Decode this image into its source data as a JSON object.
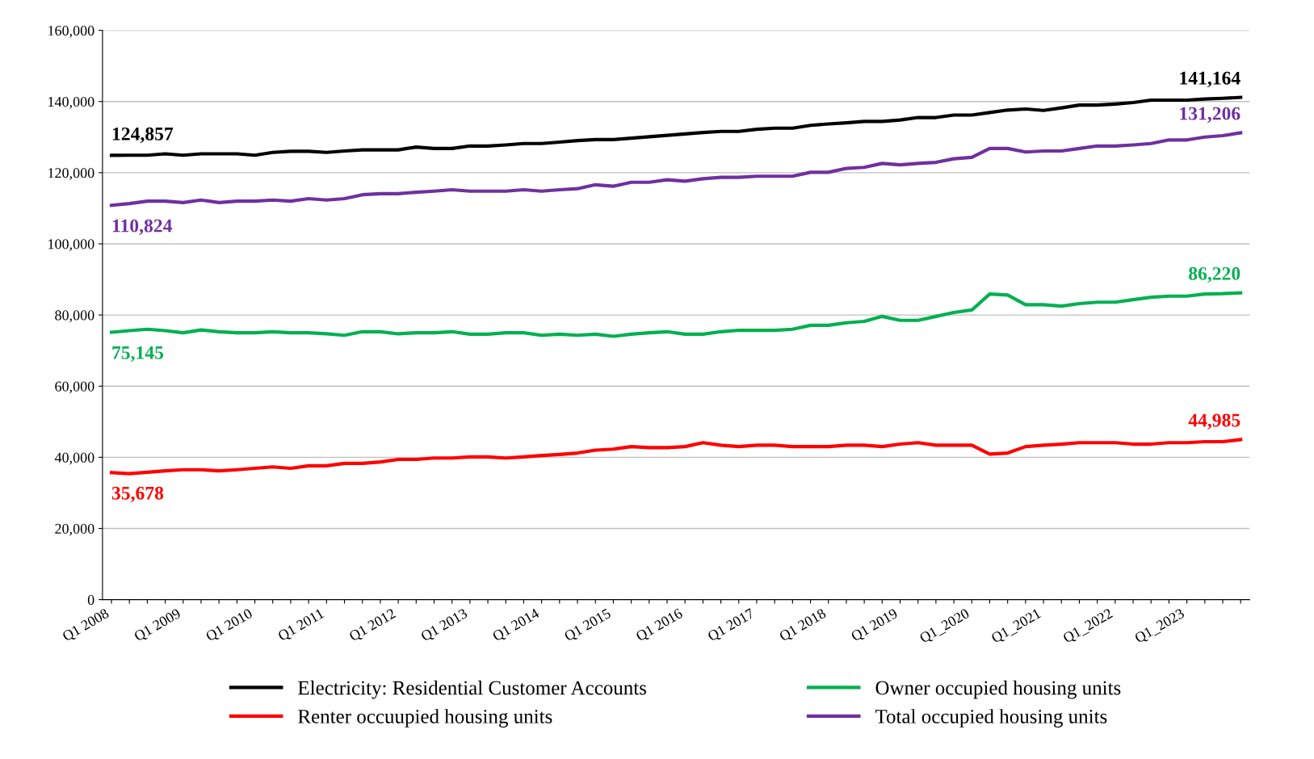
{
  "chart_data": {
    "type": "line",
    "categories": [
      "Q1 2008",
      null,
      null,
      null,
      "Q1 2009",
      null,
      null,
      null,
      "Q1 2010",
      null,
      null,
      null,
      "Q1 2011",
      null,
      null,
      null,
      "Q1 2012",
      null,
      null,
      null,
      "Q1 2013",
      null,
      null,
      null,
      "Q1 2014",
      null,
      null,
      null,
      "Q1 2015",
      null,
      null,
      null,
      "Q1 2016",
      null,
      null,
      null,
      "Q1 2017",
      null,
      null,
      null,
      "Q1 2018",
      null,
      null,
      null,
      "Q1 2019",
      null,
      null,
      null,
      "Q1_2020",
      null,
      null,
      null,
      "Q1_2021",
      null,
      null,
      null,
      "Q1_2022",
      null,
      null,
      null,
      "Q1_2023",
      null,
      null,
      null
    ],
    "series": [
      {
        "name": "Electricity: Residential Customer Accounts",
        "color": "#000000",
        "values": [
          124857,
          124900,
          124900,
          125300,
          124900,
          125300,
          125300,
          125300,
          124900,
          125700,
          126000,
          126000,
          125700,
          126100,
          126400,
          126400,
          126400,
          127200,
          126800,
          126800,
          127500,
          127500,
          127800,
          128200,
          128200,
          128600,
          129000,
          129300,
          129300,
          129700,
          130100,
          130500,
          130900,
          131300,
          131600,
          131600,
          132200,
          132500,
          132500,
          133300,
          133700,
          134000,
          134400,
          134400,
          134800,
          135500,
          135500,
          136200,
          136200,
          136900,
          137600,
          137900,
          137500,
          138200,
          139000,
          139000,
          139300,
          139700,
          140400,
          140400,
          140400,
          140700,
          140900,
          141164
        ],
        "value_labels": [
          "124,857",
          null,
          null,
          null,
          null,
          null,
          null,
          null,
          null,
          null,
          null,
          null,
          null,
          null,
          null,
          null,
          null,
          null,
          null,
          null,
          null,
          null,
          null,
          null,
          null,
          null,
          null,
          null,
          null,
          null,
          null,
          null,
          null,
          null,
          null,
          null,
          null,
          null,
          null,
          null,
          null,
          null,
          null,
          null,
          null,
          null,
          null,
          null,
          null,
          null,
          null,
          null,
          null,
          null,
          null,
          null,
          null,
          null,
          null,
          null,
          null,
          null,
          null,
          "141,164"
        ]
      },
      {
        "name": "Renter occuupied housing units",
        "color": "#ff0000",
        "values": [
          35678,
          35400,
          35800,
          36200,
          36500,
          36500,
          36200,
          36500,
          36900,
          37300,
          36900,
          37600,
          37600,
          38300,
          38300,
          38700,
          39400,
          39400,
          39800,
          39800,
          40100,
          40100,
          39800,
          40100,
          40500,
          40800,
          41200,
          42000,
          42300,
          43000,
          42700,
          42700,
          43000,
          44100,
          43400,
          43000,
          43400,
          43400,
          43000,
          43000,
          43000,
          43400,
          43400,
          43000,
          43700,
          44100,
          43400,
          43400,
          43400,
          40900,
          41200,
          43000,
          43400,
          43700,
          44100,
          44100,
          44100,
          43700,
          43700,
          44100,
          44100,
          44400,
          44400,
          44985
        ],
        "value_labels": [
          "35,678",
          null,
          null,
          null,
          null,
          null,
          null,
          null,
          null,
          null,
          null,
          null,
          null,
          null,
          null,
          null,
          null,
          null,
          null,
          null,
          null,
          null,
          null,
          null,
          null,
          null,
          null,
          null,
          null,
          null,
          null,
          null,
          null,
          null,
          null,
          null,
          null,
          null,
          null,
          null,
          null,
          null,
          null,
          null,
          null,
          null,
          null,
          null,
          null,
          null,
          null,
          null,
          null,
          null,
          null,
          null,
          null,
          null,
          null,
          null,
          null,
          null,
          null,
          "44,985"
        ]
      },
      {
        "name": "Owner occupied housing units",
        "color": "#00b050",
        "values": [
          75145,
          75600,
          76000,
          75600,
          75000,
          75800,
          75300,
          75000,
          75000,
          75300,
          75000,
          75000,
          74700,
          74300,
          75300,
          75300,
          74700,
          75000,
          75000,
          75300,
          74600,
          74600,
          75000,
          75000,
          74300,
          74600,
          74300,
          74600,
          74000,
          74600,
          75000,
          75300,
          74600,
          74600,
          75300,
          75700,
          75700,
          75700,
          76000,
          77100,
          77100,
          77800,
          78200,
          79600,
          78500,
          78500,
          79600,
          80700,
          81400,
          85900,
          85600,
          82900,
          82900,
          82500,
          83200,
          83600,
          83600,
          84300,
          85000,
          85300,
          85300,
          85900,
          86000,
          86220
        ],
        "value_labels": [
          "75,145",
          null,
          null,
          null,
          null,
          null,
          null,
          null,
          null,
          null,
          null,
          null,
          null,
          null,
          null,
          null,
          null,
          null,
          null,
          null,
          null,
          null,
          null,
          null,
          null,
          null,
          null,
          null,
          null,
          null,
          null,
          null,
          null,
          null,
          null,
          null,
          null,
          null,
          null,
          null,
          null,
          null,
          null,
          null,
          null,
          null,
          null,
          null,
          null,
          null,
          null,
          null,
          null,
          null,
          null,
          null,
          null,
          null,
          null,
          null,
          null,
          null,
          null,
          "86,220"
        ]
      },
      {
        "name": "Total occupied housing units",
        "color": "#7030a0",
        "values": [
          110824,
          111300,
          112000,
          112000,
          111600,
          112300,
          111600,
          112000,
          112000,
          112300,
          112000,
          112700,
          112300,
          112700,
          113800,
          114100,
          114100,
          114500,
          114800,
          115200,
          114800,
          114800,
          114800,
          115200,
          114800,
          115200,
          115500,
          116600,
          116200,
          117300,
          117300,
          118000,
          117600,
          118300,
          118700,
          118700,
          119000,
          119000,
          119000,
          120100,
          120100,
          121200,
          121500,
          122600,
          122200,
          122600,
          122900,
          123900,
          124300,
          126800,
          126800,
          125800,
          126100,
          126100,
          126800,
          127500,
          127500,
          127800,
          128200,
          129200,
          129200,
          130000,
          130400,
          131206
        ],
        "value_labels": [
          "110,824",
          null,
          null,
          null,
          null,
          null,
          null,
          null,
          null,
          null,
          null,
          null,
          null,
          null,
          null,
          null,
          null,
          null,
          null,
          null,
          null,
          null,
          null,
          null,
          null,
          null,
          null,
          null,
          null,
          null,
          null,
          null,
          null,
          null,
          null,
          null,
          null,
          null,
          null,
          null,
          null,
          null,
          null,
          null,
          null,
          null,
          null,
          null,
          null,
          null,
          null,
          null,
          null,
          null,
          null,
          null,
          null,
          null,
          null,
          null,
          null,
          null,
          null,
          "131,206"
        ]
      }
    ],
    "ylim": [
      0,
      160000
    ],
    "yticks": [
      {
        "value": 0,
        "label": "0"
      },
      {
        "value": 20000,
        "label": "20,000"
      },
      {
        "value": 40000,
        "label": "40,000"
      },
      {
        "value": 60000,
        "label": "60,000"
      },
      {
        "value": 80000,
        "label": "80,000"
      },
      {
        "value": 100000,
        "label": "100,000"
      },
      {
        "value": 120000,
        "label": "120,000"
      },
      {
        "value": 140000,
        "label": "140,000"
      },
      {
        "value": 160000,
        "label": "160,000"
      }
    ],
    "grid": "y",
    "legend": "bottom",
    "marker": "none",
    "line_style": "solid"
  }
}
